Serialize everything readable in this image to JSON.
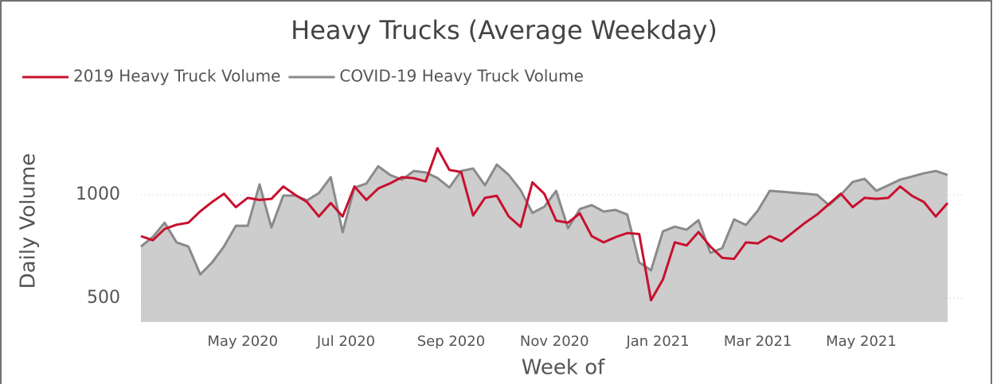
{
  "chart_data": {
    "type": "line",
    "title": "Heavy Trucks (Average Weekday)",
    "xlabel": "Week of",
    "ylabel": "Daily Volume",
    "x": [
      "2020-03-02",
      "2020-03-09",
      "2020-03-16",
      "2020-03-23",
      "2020-03-30",
      "2020-04-06",
      "2020-04-13",
      "2020-04-20",
      "2020-04-27",
      "2020-05-04",
      "2020-05-11",
      "2020-05-18",
      "2020-05-25",
      "2020-06-01",
      "2020-06-08",
      "2020-06-15",
      "2020-06-22",
      "2020-06-29",
      "2020-07-06",
      "2020-07-13",
      "2020-07-20",
      "2020-07-27",
      "2020-08-03",
      "2020-08-10",
      "2020-08-17",
      "2020-08-24",
      "2020-08-31",
      "2020-09-07",
      "2020-09-14",
      "2020-09-21",
      "2020-09-28",
      "2020-10-05",
      "2020-10-12",
      "2020-10-19",
      "2020-10-26",
      "2020-11-02",
      "2020-11-09",
      "2020-11-16",
      "2020-11-23",
      "2020-11-30",
      "2020-12-07",
      "2020-12-14",
      "2020-12-21",
      "2020-12-28",
      "2021-01-04",
      "2021-01-11",
      "2021-01-18",
      "2021-01-25",
      "2021-02-01",
      "2021-02-08",
      "2021-02-15",
      "2021-02-22",
      "2021-03-01",
      "2021-03-08",
      "2021-03-15",
      "2021-03-22",
      "2021-03-29",
      "2021-04-05",
      "2021-04-12",
      "2021-04-19",
      "2021-04-26",
      "2021-05-03",
      "2021-05-10",
      "2021-05-17",
      "2021-05-24",
      "2021-05-31",
      "2021-06-07",
      "2021-06-14",
      "2021-06-21"
    ],
    "series": [
      {
        "name": "2019 Heavy Truck Volume",
        "color": "#c8102e",
        "area": false,
        "values": [
          800,
          780,
          835,
          855,
          865,
          920,
          965,
          1005,
          940,
          985,
          975,
          980,
          1040,
          1000,
          965,
          895,
          960,
          895,
          1040,
          975,
          1030,
          1055,
          1085,
          1080,
          1065,
          1225,
          1120,
          1110,
          900,
          985,
          995,
          895,
          845,
          1060,
          1005,
          875,
          865,
          910,
          800,
          770,
          795,
          815,
          810,
          490,
          590,
          770,
          755,
          820,
          750,
          695,
          690,
          770,
          765,
          800,
          775,
          820,
          865,
          905,
          955,
          1005,
          940,
          985,
          980,
          985,
          1040,
          995,
          965,
          895,
          960
        ]
      },
      {
        "name": "COVID-19 Heavy Truck Volume",
        "color": "#8a8a8a",
        "area": true,
        "area_color": "#cdcdcd",
        "values": [
          750,
          796,
          865,
          770,
          750,
          615,
          673,
          750,
          850,
          850,
          1050,
          842,
          996,
          996,
          973,
          1008,
          1085,
          819,
          1035,
          1054,
          1138,
          1096,
          1073,
          1115,
          1108,
          1081,
          1035,
          1115,
          1127,
          1046,
          1146,
          1096,
          1023,
          912,
          942,
          1019,
          838,
          931,
          950,
          919,
          927,
          904,
          673,
          635,
          823,
          846,
          831,
          877,
          719,
          742,
          881,
          854,
          923,
          1019,
          1015,
          1010,
          1005,
          1000,
          950,
          1000,
          1062,
          1077,
          1019,
          1046,
          1073,
          1088,
          1104,
          1115,
          1096
        ]
      }
    ],
    "xlim": [
      "2020-03-02",
      "2021-06-21"
    ],
    "xticks": [
      {
        "value": "2020-05-01",
        "label": "May 2020"
      },
      {
        "value": "2020-07-01",
        "label": "Jul 2020"
      },
      {
        "value": "2020-09-01",
        "label": "Sep 2020"
      },
      {
        "value": "2020-11-01",
        "label": "Nov 2020"
      },
      {
        "value": "2021-01-01",
        "label": "Jan 2021"
      },
      {
        "value": "2021-03-01",
        "label": "Mar 2021"
      },
      {
        "value": "2021-05-01",
        "label": "May 2021"
      }
    ],
    "ylim": [
      385,
      1365
    ],
    "yticks": [
      500,
      1000
    ],
    "grid": true,
    "legend": "top-left"
  }
}
